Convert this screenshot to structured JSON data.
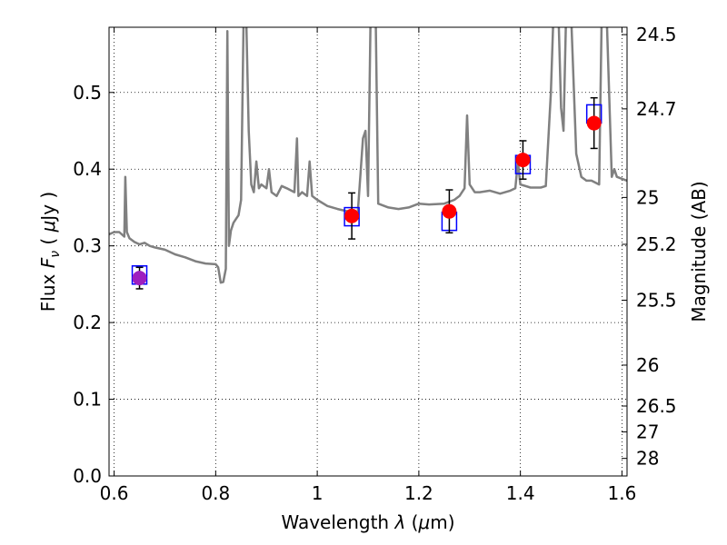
{
  "chart_data": {
    "type": "scatter",
    "xlabel": "Wavelength  λ (μm)",
    "ylabel": "Flux  F_ν  ( μJy )",
    "ylabel_parts": {
      "prefix": "Flux  ",
      "var": "F",
      "sub": "ν",
      "open": "  ( ",
      "unit_mu": "μ",
      "unit": "Jy",
      "close": " )"
    },
    "xlabel_parts": {
      "text": "Wavelength  ",
      "var": "λ",
      "open": " (",
      "mu": "μ",
      "unit": "m)"
    },
    "ylabel_right": "Magnitude (AB)",
    "xlim": [
      0.59,
      1.61
    ],
    "ylim": [
      0.0,
      0.585
    ],
    "grid": true,
    "x_ticks": [
      0.6,
      0.8,
      1.0,
      1.2,
      1.4,
      1.6
    ],
    "x_tick_labels": [
      "0.6",
      "0.8",
      "1",
      "1.2",
      "1.4",
      "1.6"
    ],
    "y_ticks": [
      0.0,
      0.1,
      0.2,
      0.3,
      0.4,
      0.5
    ],
    "y_tick_labels": [
      "0.0",
      "0.1",
      "0.2",
      "0.3",
      "0.4",
      "0.5"
    ],
    "right_ticks": [
      {
        "label": "24.5",
        "flux": 0.5754
      },
      {
        "label": "24.7",
        "flux": 0.4786
      },
      {
        "label": "25",
        "flux": 0.3631
      },
      {
        "label": "25.2",
        "flux": 0.302
      },
      {
        "label": "25.5",
        "flux": 0.2291
      },
      {
        "label": "26",
        "flux": 0.1445
      },
      {
        "label": "26.5",
        "flux": 0.0912
      },
      {
        "label": "27",
        "flux": 0.0575
      },
      {
        "label": "28",
        "flux": 0.0229
      }
    ],
    "series": [
      {
        "type": "line",
        "color": "#808080",
        "points": [
          [
            0.59,
            0.315
          ],
          [
            0.6,
            0.318
          ],
          [
            0.61,
            0.318
          ],
          [
            0.62,
            0.312
          ],
          [
            0.622,
            0.39
          ],
          [
            0.625,
            0.318
          ],
          [
            0.63,
            0.31
          ],
          [
            0.64,
            0.305
          ],
          [
            0.65,
            0.302
          ],
          [
            0.66,
            0.304
          ],
          [
            0.67,
            0.3
          ],
          [
            0.68,
            0.298
          ],
          [
            0.7,
            0.295
          ],
          [
            0.72,
            0.289
          ],
          [
            0.74,
            0.285
          ],
          [
            0.76,
            0.28
          ],
          [
            0.78,
            0.277
          ],
          [
            0.8,
            0.276
          ],
          [
            0.805,
            0.272
          ],
          [
            0.81,
            0.252
          ],
          [
            0.815,
            0.253
          ],
          [
            0.82,
            0.27
          ],
          [
            0.823,
            0.58
          ],
          [
            0.826,
            0.3
          ],
          [
            0.83,
            0.32
          ],
          [
            0.835,
            0.33
          ],
          [
            0.84,
            0.335
          ],
          [
            0.845,
            0.34
          ],
          [
            0.85,
            0.36
          ],
          [
            0.855,
            0.6
          ],
          [
            0.86,
            0.6
          ],
          [
            0.865,
            0.45
          ],
          [
            0.87,
            0.38
          ],
          [
            0.875,
            0.37
          ],
          [
            0.88,
            0.41
          ],
          [
            0.885,
            0.375
          ],
          [
            0.89,
            0.38
          ],
          [
            0.9,
            0.375
          ],
          [
            0.905,
            0.4
          ],
          [
            0.91,
            0.37
          ],
          [
            0.92,
            0.365
          ],
          [
            0.93,
            0.378
          ],
          [
            0.94,
            0.375
          ],
          [
            0.955,
            0.37
          ],
          [
            0.96,
            0.44
          ],
          [
            0.963,
            0.365
          ],
          [
            0.97,
            0.37
          ],
          [
            0.98,
            0.365
          ],
          [
            0.985,
            0.41
          ],
          [
            0.99,
            0.365
          ],
          [
            1.0,
            0.36
          ],
          [
            1.02,
            0.352
          ],
          [
            1.04,
            0.348
          ],
          [
            1.06,
            0.345
          ],
          [
            1.07,
            0.34
          ],
          [
            1.08,
            0.345
          ],
          [
            1.09,
            0.44
          ],
          [
            1.095,
            0.45
          ],
          [
            1.1,
            0.365
          ],
          [
            1.105,
            0.6
          ],
          [
            1.115,
            0.6
          ],
          [
            1.12,
            0.355
          ],
          [
            1.14,
            0.35
          ],
          [
            1.16,
            0.348
          ],
          [
            1.18,
            0.35
          ],
          [
            1.2,
            0.355
          ],
          [
            1.22,
            0.354
          ],
          [
            1.25,
            0.355
          ],
          [
            1.27,
            0.36
          ],
          [
            1.28,
            0.365
          ],
          [
            1.29,
            0.375
          ],
          [
            1.295,
            0.47
          ],
          [
            1.3,
            0.38
          ],
          [
            1.31,
            0.37
          ],
          [
            1.32,
            0.37
          ],
          [
            1.34,
            0.372
          ],
          [
            1.36,
            0.368
          ],
          [
            1.38,
            0.372
          ],
          [
            1.39,
            0.375
          ],
          [
            1.395,
            0.41
          ],
          [
            1.4,
            0.38
          ],
          [
            1.42,
            0.376
          ],
          [
            1.44,
            0.376
          ],
          [
            1.45,
            0.378
          ],
          [
            1.46,
            0.5
          ],
          [
            1.465,
            0.6
          ],
          [
            1.475,
            0.6
          ],
          [
            1.48,
            0.48
          ],
          [
            1.485,
            0.45
          ],
          [
            1.49,
            0.6
          ],
          [
            1.5,
            0.6
          ],
          [
            1.51,
            0.42
          ],
          [
            1.52,
            0.39
          ],
          [
            1.53,
            0.385
          ],
          [
            1.54,
            0.385
          ],
          [
            1.555,
            0.38
          ],
          [
            1.56,
            0.6
          ],
          [
            1.57,
            0.6
          ],
          [
            1.58,
            0.39
          ],
          [
            1.585,
            0.4
          ],
          [
            1.59,
            0.39
          ],
          [
            1.61,
            0.385
          ]
        ]
      }
    ],
    "model_boxes": [
      {
        "x": 0.65,
        "y": 0.262
      },
      {
        "x": 1.068,
        "y": 0.338
      },
      {
        "x": 1.26,
        "y": 0.332
      },
      {
        "x": 1.405,
        "y": 0.406
      },
      {
        "x": 1.545,
        "y": 0.472
      }
    ],
    "observed": [
      {
        "x": 0.65,
        "y": 0.258,
        "err": 0.014,
        "color": "#9e1fbf"
      },
      {
        "x": 1.068,
        "y": 0.339,
        "err": 0.03,
        "color": "#ff0000"
      },
      {
        "x": 1.26,
        "y": 0.345,
        "err": 0.028,
        "color": "#ff0000"
      },
      {
        "x": 1.405,
        "y": 0.412,
        "err": 0.025,
        "color": "#ff0000"
      },
      {
        "x": 1.545,
        "y": 0.46,
        "err": 0.033,
        "color": "#ff0000"
      }
    ],
    "colors": {
      "model_box": "#0000ff",
      "line": "#808080",
      "grid": "#000000"
    }
  }
}
